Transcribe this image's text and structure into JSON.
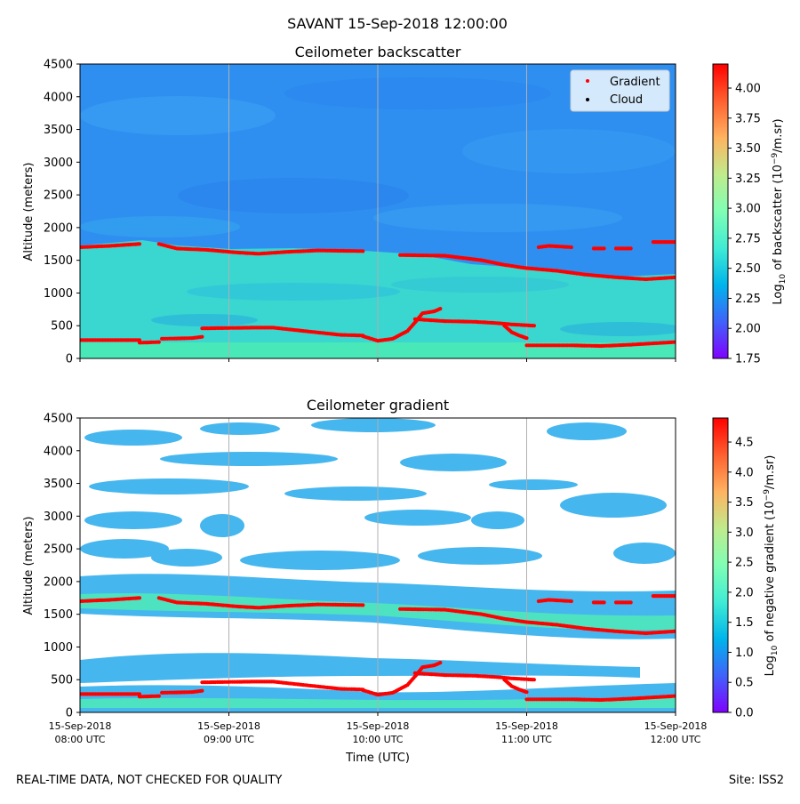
{
  "figure_title": "SAVANT 15-Sep-2018 12:00:00",
  "footer": {
    "left": "REAL-TIME DATA, NOT CHECKED FOR QUALITY",
    "right": "Site: ISS2"
  },
  "colors": {
    "gradient_marker": "#ff0000",
    "cloud_marker": "#000000",
    "backscatter_background": "#2e8ff0",
    "backscatter_layer": "#3ad6d0",
    "backscatter_surface": "#48e8b8",
    "gradient_fill": "#45b6ee",
    "gradient_strong": "#4de3c0"
  },
  "chart_data": [
    {
      "type": "heatmap",
      "title": "Ceilometer backscatter",
      "ylabel": "Altitude (meters)",
      "xlabel": "",
      "x_range_hours": [
        8,
        12
      ],
      "ylim": [
        0,
        4500
      ],
      "y_ticks": [
        0,
        500,
        1000,
        1500,
        2000,
        2500,
        3000,
        3500,
        4000,
        4500
      ],
      "x_gridlines_hours": [
        9,
        10,
        11
      ],
      "legend": {
        "position": "top-right",
        "entries": [
          "Gradient",
          "Cloud"
        ]
      },
      "colorbar": {
        "label_prefix": "Log",
        "label_sub": "10",
        "label_mid": " of backscatter (10",
        "label_sup": "−9",
        "label_suffix": "/m.sr)",
        "range": [
          1.75,
          4.2
        ],
        "ticks": [
          "1.75",
          "2.00",
          "2.25",
          "2.50",
          "2.75",
          "3.00",
          "3.25",
          "3.50",
          "3.75",
          "4.00"
        ],
        "colormap": "rainbow"
      }
    },
    {
      "type": "heatmap",
      "title": "Ceilometer gradient",
      "ylabel": "Altitude (meters)",
      "xlabel": "Time (UTC)",
      "x_range_hours": [
        8,
        12
      ],
      "ylim": [
        0,
        4500
      ],
      "y_ticks": [
        0,
        500,
        1000,
        1500,
        2000,
        2500,
        3000,
        3500,
        4000,
        4500
      ],
      "x_gridlines_hours": [
        9,
        10,
        11
      ],
      "x_tick_labels": [
        {
          "hour": 8,
          "date": "15-Sep-2018",
          "time": "08:00 UTC"
        },
        {
          "hour": 9,
          "date": "15-Sep-2018",
          "time": "09:00 UTC"
        },
        {
          "hour": 10,
          "date": "15-Sep-2018",
          "time": "10:00 UTC"
        },
        {
          "hour": 11,
          "date": "15-Sep-2018",
          "time": "11:00 UTC"
        },
        {
          "hour": 12,
          "date": "15-Sep-2018",
          "time": "12:00 UTC"
        }
      ],
      "colorbar": {
        "label_prefix": "Log",
        "label_sub": "10",
        "label_mid": " of negative gradient (10",
        "label_sup": "−9",
        "label_suffix": "/m.sr)",
        "range": [
          0.0,
          4.9
        ],
        "ticks": [
          "0.0",
          "0.5",
          "1.0",
          "1.5",
          "2.0",
          "2.5",
          "3.0",
          "3.5",
          "4.0",
          "4.5"
        ],
        "colormap": "rainbow"
      }
    }
  ],
  "gradient_series": [
    {
      "name": "upper-layer-1",
      "points": [
        [
          8.0,
          1700
        ],
        [
          8.2,
          1720
        ],
        [
          8.4,
          1750
        ]
      ]
    },
    {
      "name": "upper-layer-2",
      "points": [
        [
          8.53,
          1750
        ],
        [
          8.65,
          1680
        ],
        [
          8.85,
          1660
        ],
        [
          9.05,
          1620
        ],
        [
          9.2,
          1600
        ],
        [
          9.4,
          1630
        ],
        [
          9.6,
          1650
        ],
        [
          9.9,
          1640
        ]
      ]
    },
    {
      "name": "upper-layer-3",
      "points": [
        [
          10.15,
          1580
        ],
        [
          10.45,
          1570
        ],
        [
          10.7,
          1500
        ],
        [
          10.85,
          1430
        ],
        [
          11.0,
          1380
        ],
        [
          11.2,
          1340
        ],
        [
          11.4,
          1280
        ],
        [
          11.6,
          1240
        ],
        [
          11.8,
          1210
        ],
        [
          12.0,
          1240
        ]
      ]
    },
    {
      "name": "upper-layer-4",
      "points": [
        [
          11.08,
          1700
        ],
        [
          11.15,
          1720
        ],
        [
          11.3,
          1700
        ]
      ]
    },
    {
      "name": "upper-layer-5",
      "points": [
        [
          11.45,
          1680
        ],
        [
          11.52,
          1680
        ]
      ]
    },
    {
      "name": "upper-layer-6",
      "points": [
        [
          11.6,
          1680
        ],
        [
          11.7,
          1680
        ]
      ]
    },
    {
      "name": "upper-layer-7",
      "points": [
        [
          11.85,
          1780
        ],
        [
          12.0,
          1780
        ]
      ]
    },
    {
      "name": "lower-layer-1",
      "points": [
        [
          8.0,
          280
        ],
        [
          8.4,
          280
        ]
      ]
    },
    {
      "name": "lower-layer-2",
      "points": [
        [
          8.4,
          240
        ],
        [
          8.53,
          250
        ]
      ]
    },
    {
      "name": "lower-layer-3",
      "points": [
        [
          8.55,
          300
        ],
        [
          8.75,
          310
        ],
        [
          8.82,
          330
        ]
      ]
    },
    {
      "name": "lower-layer-4",
      "points": [
        [
          8.82,
          460
        ],
        [
          9.15,
          470
        ],
        [
          9.3,
          470
        ],
        [
          9.5,
          420
        ],
        [
          9.75,
          360
        ],
        [
          9.9,
          350
        ]
      ]
    },
    {
      "name": "lower-layer-5",
      "points": [
        [
          9.9,
          340
        ],
        [
          10.0,
          270
        ],
        [
          10.1,
          300
        ],
        [
          10.2,
          420
        ],
        [
          10.25,
          550
        ],
        [
          10.3,
          690
        ],
        [
          10.38,
          720
        ]
      ]
    },
    {
      "name": "lower-layer-6",
      "points": [
        [
          10.38,
          720
        ],
        [
          10.42,
          760
        ]
      ]
    },
    {
      "name": "lower-layer-7",
      "points": [
        [
          10.25,
          600
        ],
        [
          10.45,
          570
        ],
        [
          10.65,
          560
        ],
        [
          10.8,
          540
        ],
        [
          10.9,
          520
        ],
        [
          11.05,
          500
        ]
      ]
    },
    {
      "name": "lower-layer-8",
      "points": [
        [
          10.85,
          500
        ],
        [
          10.9,
          400
        ],
        [
          10.95,
          350
        ],
        [
          11.0,
          310
        ]
      ]
    },
    {
      "name": "lower-layer-9",
      "points": [
        [
          11.0,
          200
        ],
        [
          11.3,
          200
        ],
        [
          11.5,
          190
        ],
        [
          11.7,
          210
        ],
        [
          12.0,
          250
        ]
      ]
    }
  ]
}
